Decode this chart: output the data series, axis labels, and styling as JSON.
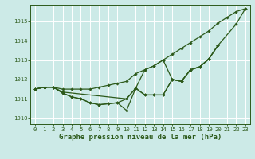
{
  "background_color": "#cceae7",
  "grid_color": "#ffffff",
  "line_color": "#2d5a1b",
  "marker": "D",
  "markersize": 1.8,
  "linewidth": 0.9,
  "xlim": [
    -0.5,
    23.5
  ],
  "ylim": [
    1009.7,
    1015.85
  ],
  "yticks": [
    1010,
    1011,
    1012,
    1013,
    1014,
    1015
  ],
  "xticks": [
    0,
    1,
    2,
    3,
    4,
    5,
    6,
    7,
    8,
    9,
    10,
    11,
    12,
    13,
    14,
    15,
    16,
    17,
    18,
    19,
    20,
    21,
    22,
    23
  ],
  "xlabel": "Graphe pression niveau de la mer (hPa)",
  "xlabel_fontsize": 6.5,
  "tick_fontsize": 5.2,
  "series": [
    {
      "x": [
        0,
        1,
        2,
        3,
        4,
        5,
        6,
        7,
        8,
        9,
        10,
        11,
        12,
        13,
        14,
        15,
        16,
        17,
        18,
        19,
        20,
        21,
        22,
        23
      ],
      "y": [
        1011.5,
        1011.6,
        1011.6,
        1011.5,
        1011.5,
        1011.5,
        1011.5,
        1011.6,
        1011.7,
        1011.8,
        1011.9,
        1012.3,
        1012.5,
        1012.7,
        1013.0,
        1013.3,
        1013.6,
        1013.9,
        1014.2,
        1014.5,
        1014.9,
        1015.2,
        1015.5,
        1015.65
      ]
    },
    {
      "x": [
        0,
        1,
        2,
        3,
        10,
        11,
        12,
        13,
        14,
        15,
        16,
        17,
        18,
        19,
        20,
        22,
        23
      ],
      "y": [
        1011.5,
        1011.6,
        1011.6,
        1011.35,
        1011.0,
        1011.55,
        1012.5,
        1012.7,
        1013.0,
        1012.0,
        1011.9,
        1012.5,
        1012.65,
        1013.05,
        1013.75,
        1014.85,
        1015.65
      ]
    },
    {
      "x": [
        0,
        1,
        2,
        3,
        4,
        5,
        6,
        7,
        8,
        9,
        10,
        11,
        12,
        13,
        14,
        15,
        16,
        17,
        18,
        19,
        20
      ],
      "y": [
        1011.5,
        1011.6,
        1011.6,
        1011.3,
        1011.1,
        1011.0,
        1010.8,
        1010.7,
        1010.75,
        1010.8,
        1011.0,
        1011.55,
        1011.2,
        1011.2,
        1011.2,
        1012.0,
        1011.9,
        1012.5,
        1012.65,
        1013.05,
        1013.75
      ]
    },
    {
      "x": [
        0,
        1,
        2,
        3,
        4,
        5,
        6,
        7,
        8,
        9,
        10,
        11,
        12,
        13,
        14,
        15,
        16,
        17,
        18,
        19,
        20
      ],
      "y": [
        1011.5,
        1011.6,
        1011.6,
        1011.3,
        1011.1,
        1011.0,
        1010.8,
        1010.7,
        1010.75,
        1010.8,
        1010.4,
        1011.55,
        1011.2,
        1011.2,
        1011.2,
        1012.0,
        1011.9,
        1012.5,
        1012.65,
        1013.05,
        1013.75
      ]
    }
  ]
}
